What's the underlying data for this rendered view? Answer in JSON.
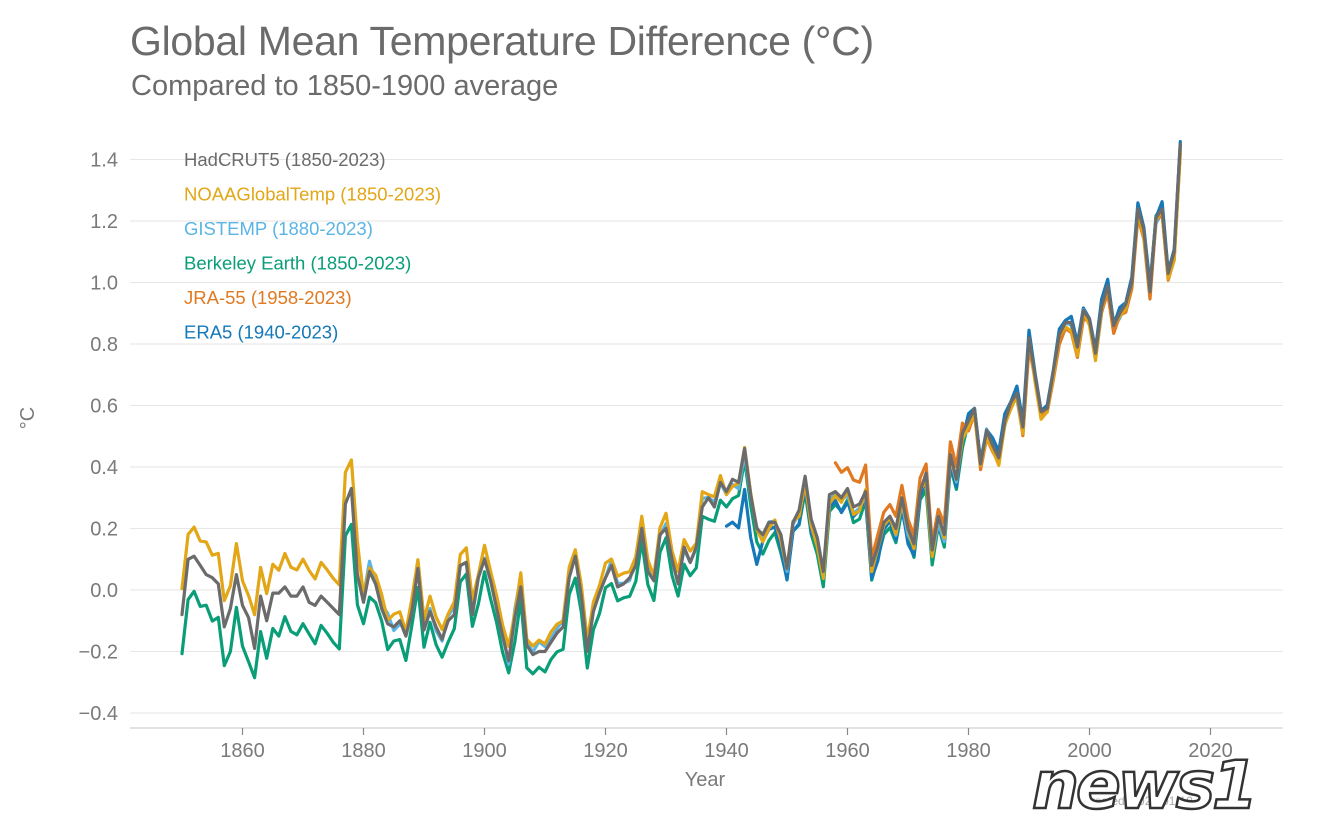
{
  "chart_data": {
    "type": "line",
    "title": "Global Mean Temperature Difference (°C)",
    "subtitle": "Compared to 1850-1900 average",
    "xlabel": "Year",
    "ylabel": "°C",
    "xlim": [
      1842,
      2033
    ],
    "ylim": [
      -0.45,
      1.45
    ],
    "xticks": [
      1860,
      1880,
      1900,
      1920,
      1940,
      1960,
      1980,
      2000,
      2020
    ],
    "xtick_labels": [
      "1860",
      "1880",
      "1900",
      "1920",
      "1940",
      "1960",
      "1980",
      "2000",
      "2020"
    ],
    "yticks": [
      -0.4,
      -0.2,
      0.0,
      0.2,
      0.4,
      0.6,
      0.8,
      1.0,
      1.2,
      1.4
    ],
    "ytick_labels": [
      "−0.4",
      "−0.2",
      "0.0",
      "0.2",
      "0.4",
      "0.6",
      "0.8",
      "1.0",
      "1.2",
      "1.4"
    ],
    "grid": "horizontal",
    "legend_position": "top-left",
    "base_series": {
      "start_year": 1850,
      "values": [
        -0.08,
        0.1,
        0.11,
        0.08,
        0.05,
        0.04,
        0.02,
        -0.12,
        -0.06,
        0.05,
        -0.05,
        -0.09,
        -0.19,
        -0.02,
        -0.1,
        -0.01,
        -0.01,
        0.01,
        -0.02,
        -0.02,
        0.01,
        -0.04,
        -0.05,
        -0.02,
        -0.04,
        -0.06,
        -0.08,
        0.28,
        0.33,
        0.05,
        -0.04,
        0.06,
        0.02,
        -0.06,
        -0.11,
        -0.12,
        -0.1,
        -0.15,
        -0.07,
        0.07,
        -0.13,
        -0.07,
        -0.12,
        -0.16,
        -0.1,
        -0.08,
        0.08,
        0.09,
        -0.08,
        0.04,
        0.1,
        0.03,
        -0.06,
        -0.15,
        -0.23,
        -0.09,
        0.01,
        -0.18,
        -0.21,
        -0.2,
        -0.2,
        -0.17,
        -0.14,
        -0.12,
        0.04,
        0.11,
        -0.02,
        -0.2,
        -0.07,
        -0.01,
        0.04,
        0.08,
        0.01,
        0.02,
        0.04,
        0.08,
        0.2,
        0.06,
        0.03,
        0.18,
        0.2,
        0.1,
        0.02,
        0.14,
        0.09,
        0.14,
        0.27,
        0.3,
        0.27,
        0.35,
        0.32,
        0.36,
        0.35,
        0.46,
        0.31,
        0.2,
        0.18,
        0.22,
        0.22,
        0.18,
        0.07,
        0.22,
        0.26,
        0.37,
        0.23,
        0.17,
        0.06,
        0.31,
        0.32,
        0.3,
        0.33,
        0.27,
        0.28,
        0.32,
        0.08,
        0.14,
        0.22,
        0.24,
        0.2,
        0.3,
        0.2,
        0.15,
        0.32,
        0.38,
        0.13,
        0.24,
        0.18,
        0.44,
        0.36,
        0.51,
        0.55,
        0.59,
        0.41,
        0.52,
        0.47,
        0.43,
        0.55,
        0.61,
        0.64,
        0.53,
        0.82,
        0.7,
        0.58,
        0.59,
        0.71,
        0.83,
        0.87,
        0.87,
        0.79,
        0.91,
        0.88,
        0.77,
        0.92,
        0.99,
        0.86,
        0.9,
        0.93,
        1.0,
        1.24,
        1.17,
        0.97,
        1.21,
        1.24,
        1.03,
        1.1,
        1.45
      ]
    },
    "series": [
      {
        "name": "HadCRUT5 (1850-2023)",
        "color": "#6b6b6b",
        "start_year": 1850,
        "end_year": 2023
      },
      {
        "name": "NOAAGlobalTemp (1850-2023)",
        "color": "#e2a616",
        "start_year": 1850,
        "end_year": 2023
      },
      {
        "name": "GISTEMP (1880-2023)",
        "color": "#5ab4e5",
        "start_year": 1880,
        "end_year": 2023
      },
      {
        "name": "Berkeley Earth (1850-2023)",
        "color": "#0a9e78",
        "start_year": 1850,
        "end_year": 2023
      },
      {
        "name": "JRA-55 (1958-2023)",
        "color": "#e07a22",
        "start_year": 1958,
        "end_year": 2023
      },
      {
        "name": "ERA5 (1940-2023)",
        "color": "#1578b8",
        "start_year": 1940,
        "end_year": 2023
      }
    ],
    "annotations": [
      "Created: 2024-01-10"
    ]
  },
  "watermark": "news1"
}
